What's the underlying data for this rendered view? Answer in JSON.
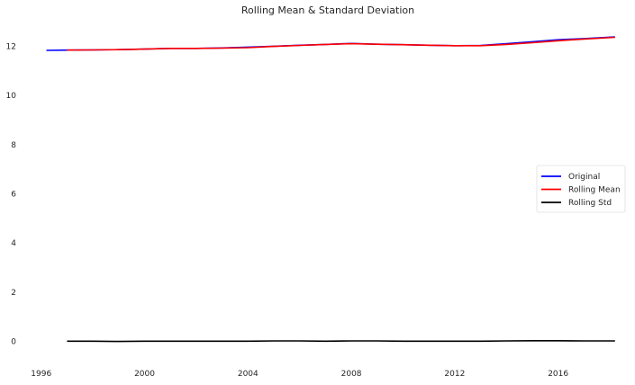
{
  "chart_data": {
    "type": "line",
    "title": "Rolling Mean & Standard Deviation",
    "xlabel": "",
    "ylabel": "",
    "xlim": [
      1995.8,
      2018.8
    ],
    "ylim": [
      -0.6,
      13.0
    ],
    "x_ticks": [
      1996,
      2000,
      2004,
      2008,
      2012,
      2016
    ],
    "y_ticks": [
      0,
      2,
      4,
      6,
      8,
      10,
      12
    ],
    "grid": false,
    "legend_position": "center-right",
    "series": [
      {
        "name": "Original",
        "color": "#0000ff",
        "x": [
          1996.2,
          1997.0,
          1998.0,
          1999.0,
          2000.0,
          2001.0,
          2002.0,
          2003.0,
          2004.0,
          2005.0,
          2006.0,
          2007.0,
          2008.0,
          2009.0,
          2010.0,
          2011.0,
          2012.0,
          2013.0,
          2014.0,
          2015.0,
          2016.0,
          2017.0,
          2018.2
        ],
        "y": [
          11.83,
          11.84,
          11.85,
          11.86,
          11.88,
          11.91,
          11.91,
          11.93,
          11.96,
          12.0,
          12.04,
          12.07,
          12.11,
          12.08,
          12.06,
          12.04,
          12.02,
          12.03,
          12.1,
          12.18,
          12.26,
          12.31,
          12.38
        ]
      },
      {
        "name": "Rolling Mean",
        "color": "#ff0000",
        "x": [
          1997.0,
          1998.0,
          1999.0,
          2000.0,
          2001.0,
          2002.0,
          2003.0,
          2004.0,
          2005.0,
          2006.0,
          2007.0,
          2008.0,
          2009.0,
          2010.0,
          2011.0,
          2012.0,
          2013.0,
          2014.0,
          2015.0,
          2016.0,
          2017.0,
          2018.2
        ],
        "y": [
          11.84,
          11.85,
          11.86,
          11.88,
          11.91,
          11.91,
          11.92,
          11.94,
          11.99,
          12.03,
          12.07,
          12.1,
          12.08,
          12.06,
          12.04,
          12.02,
          12.02,
          12.07,
          12.14,
          12.22,
          12.29,
          12.36
        ]
      },
      {
        "name": "Rolling Std",
        "color": "#000000",
        "x": [
          1997.0,
          1998.0,
          1999.0,
          2000.0,
          2001.0,
          2002.0,
          2003.0,
          2004.0,
          2005.0,
          2006.0,
          2007.0,
          2008.0,
          2009.0,
          2010.0,
          2011.0,
          2012.0,
          2013.0,
          2014.0,
          2015.0,
          2016.0,
          2017.0,
          2018.2
        ],
        "y": [
          0.01,
          0.01,
          0.0,
          0.01,
          0.01,
          0.01,
          0.01,
          0.01,
          0.02,
          0.02,
          0.01,
          0.02,
          0.02,
          0.01,
          0.01,
          0.01,
          0.01,
          0.02,
          0.03,
          0.03,
          0.02,
          0.02
        ]
      }
    ]
  }
}
